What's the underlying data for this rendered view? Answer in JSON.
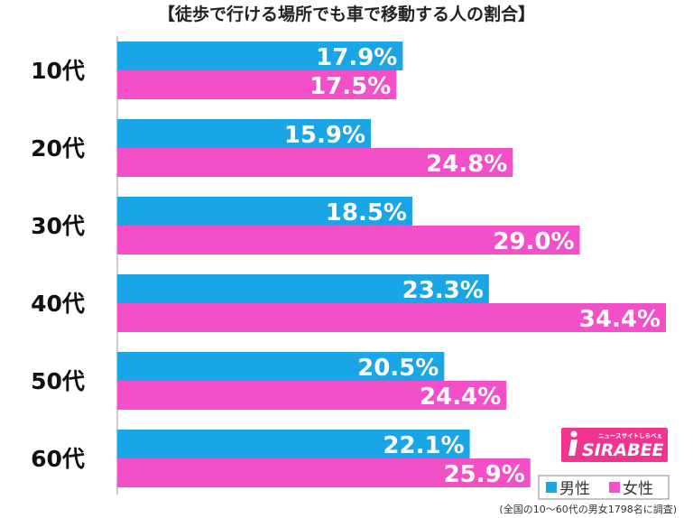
{
  "chart_data": {
    "type": "bar",
    "orientation": "horizontal",
    "title": "【徒歩で行ける場所でも車で移動する人の割合】",
    "categories": [
      "10代",
      "20代",
      "30代",
      "40代",
      "50代",
      "60代"
    ],
    "series": [
      {
        "name": "男性",
        "color": "#1aa5e6",
        "values": [
          17.9,
          15.9,
          18.5,
          23.3,
          20.5,
          22.1
        ]
      },
      {
        "name": "女性",
        "color": "#f24fc8",
        "values": [
          17.5,
          24.8,
          29.0,
          34.4,
          24.4,
          25.9
        ]
      }
    ],
    "value_labels": [
      [
        "17.9%",
        "15.9%",
        "18.5%",
        "23.3%",
        "20.5%",
        "22.1%"
      ],
      [
        "17.5%",
        "24.8%",
        "29.0%",
        "34.4%",
        "24.4%",
        "25.9%"
      ]
    ],
    "xlim": [
      0,
      34.4
    ],
    "grid": false,
    "legend_position": "bottom-right",
    "footnote": "(全国の10〜60代の男女1798名に調査)"
  },
  "logo": {
    "text": "SIRABEE",
    "tagline": "ニュースサイトしらべぇ"
  },
  "colors": {
    "logo_bg": "#f0348f",
    "axis": "#999999"
  }
}
